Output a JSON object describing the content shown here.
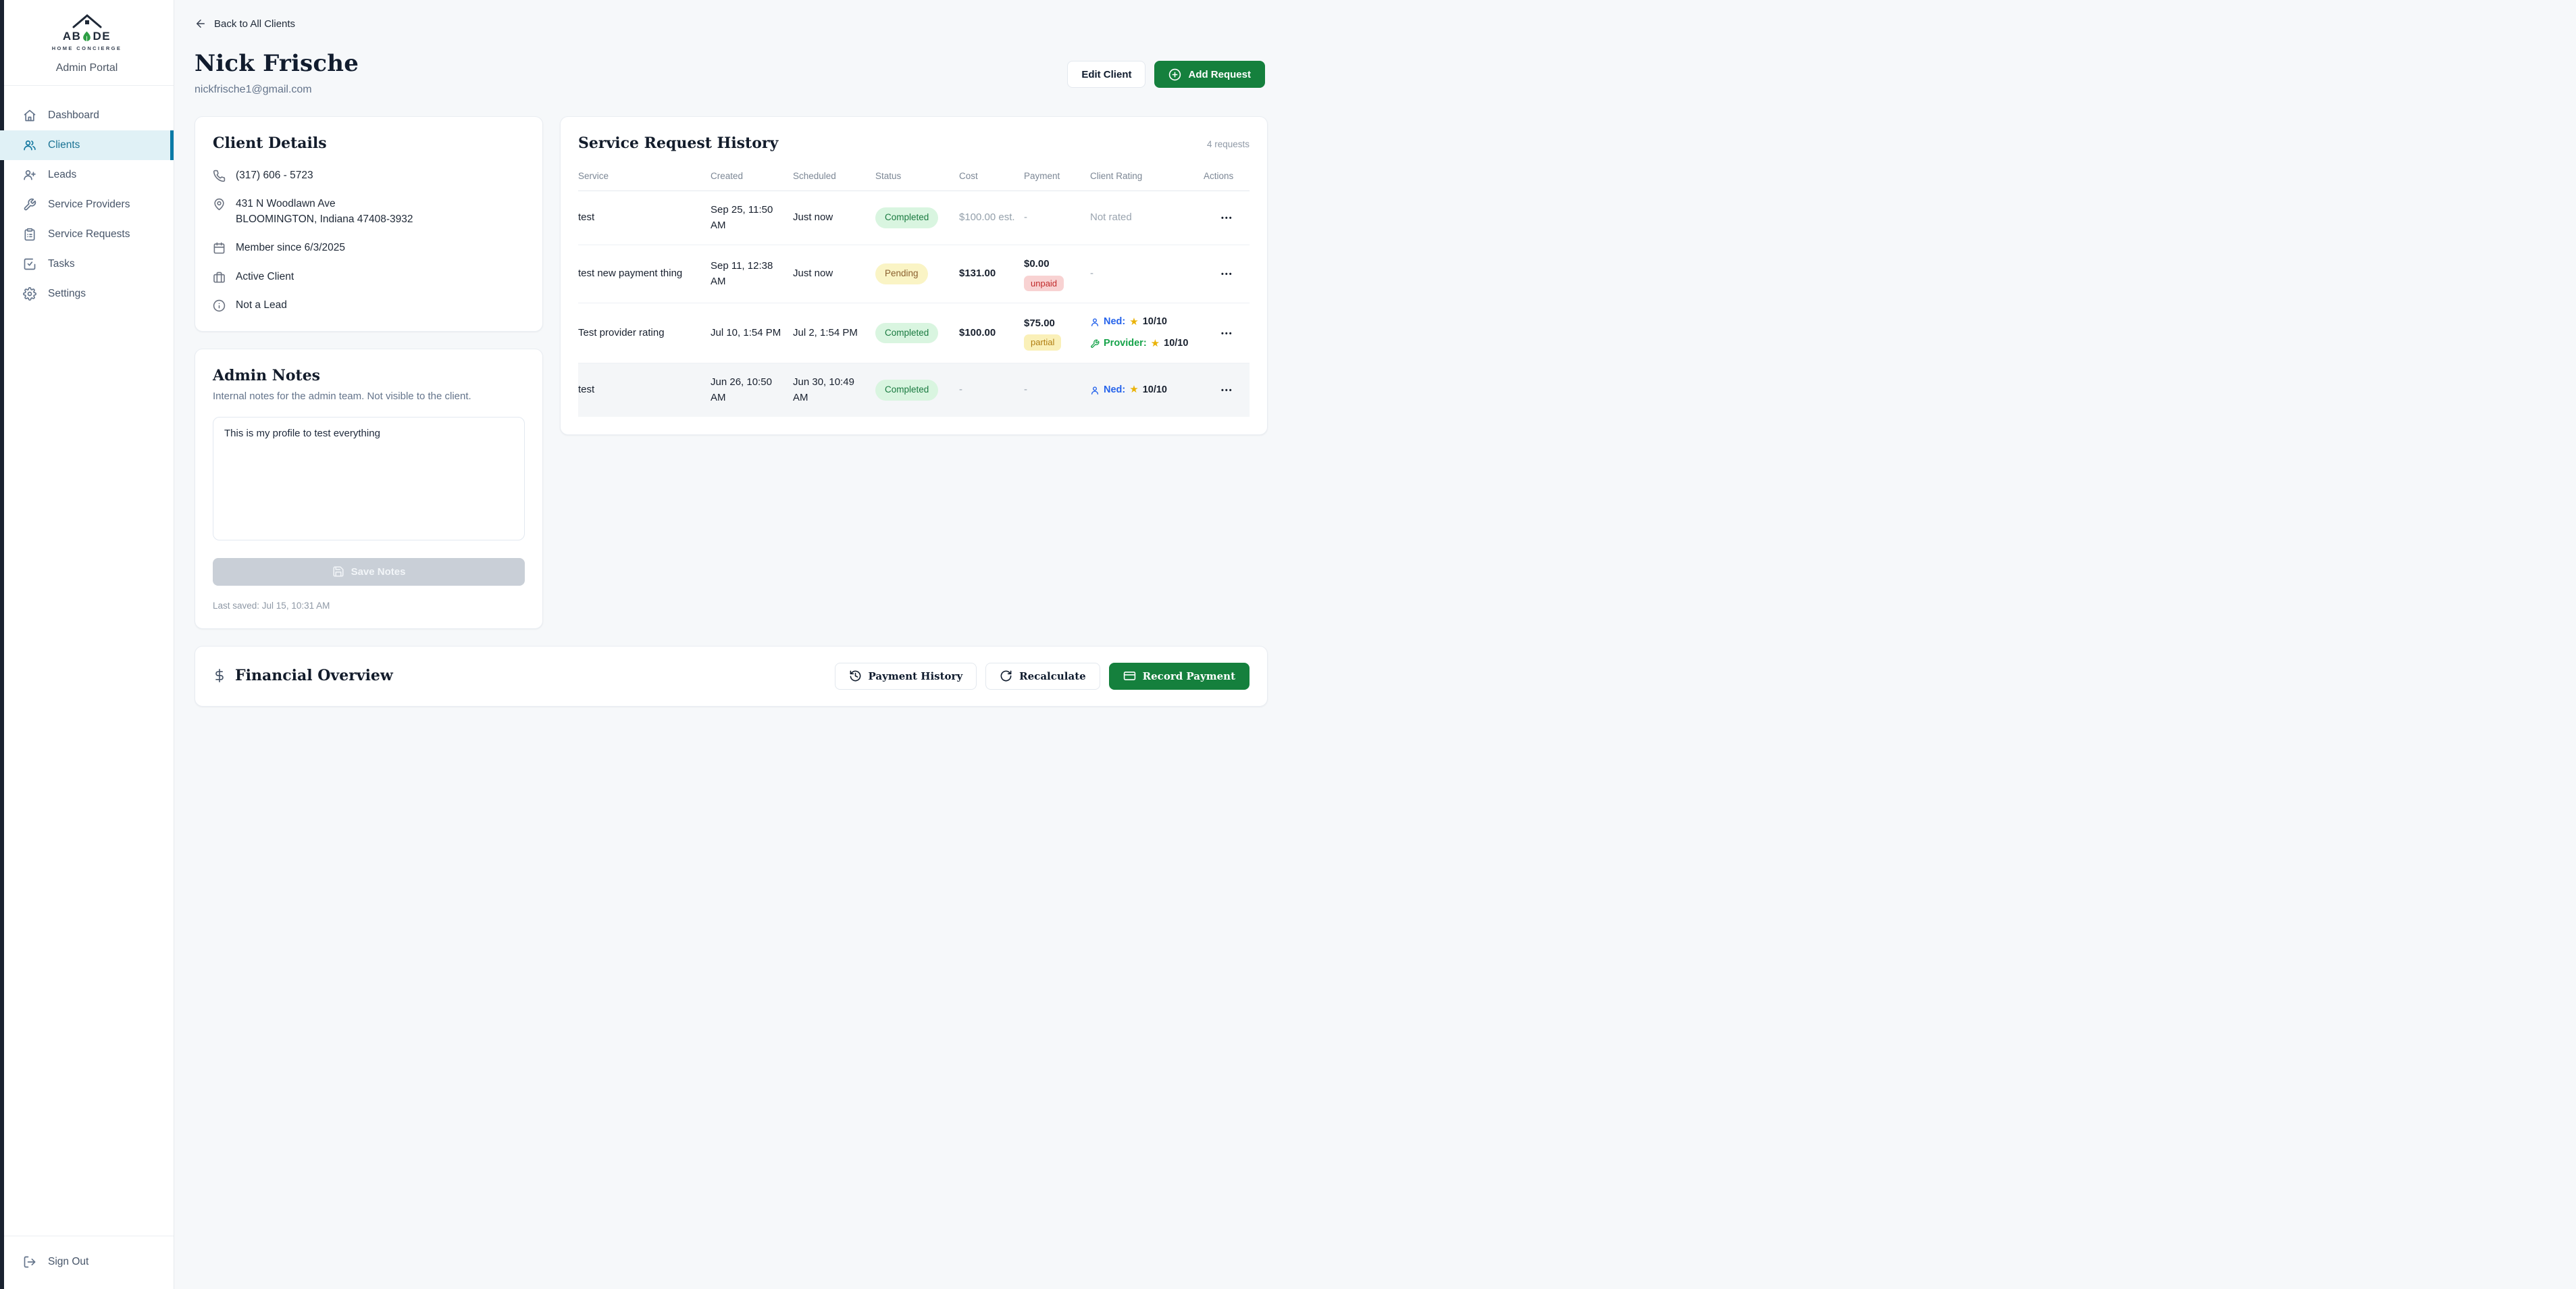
{
  "sidebar": {
    "brand_prefix": "AB",
    "brand_suffix": "DE",
    "tagline": "HOME CONCIERGE",
    "portal_label": "Admin Portal",
    "items": [
      {
        "label": "Dashboard",
        "active": false
      },
      {
        "label": "Clients",
        "active": true
      },
      {
        "label": "Leads",
        "active": false
      },
      {
        "label": "Service Providers",
        "active": false
      },
      {
        "label": "Service Requests",
        "active": false
      },
      {
        "label": "Tasks",
        "active": false
      },
      {
        "label": "Settings",
        "active": false
      }
    ],
    "sign_out_label": "Sign Out"
  },
  "header": {
    "back_link": "Back to All Clients",
    "client_name": "Nick Frische",
    "client_email": "nickfrische1@gmail.com",
    "edit_button": "Edit Client",
    "add_request_button": "Add Request"
  },
  "client_details": {
    "title": "Client Details",
    "phone": "(317) 606 - 5723",
    "address_line1": "431 N Woodlawn Ave",
    "address_line2": "BLOOMINGTON, Indiana 47408-3932",
    "member_since": "Member since 6/3/2025",
    "client_status": "Active Client",
    "lead_status": "Not a Lead"
  },
  "admin_notes": {
    "title": "Admin Notes",
    "subtitle": "Internal notes for the admin team. Not visible to the client.",
    "note_text": "This is my profile to test everything",
    "save_button": "Save Notes",
    "last_saved": "Last saved: Jul 15, 10:31 AM"
  },
  "service_history": {
    "title": "Service Request History",
    "count_label": "4 requests",
    "columns": [
      "Service",
      "Created",
      "Scheduled",
      "Status",
      "Cost",
      "Payment",
      "Client Rating",
      "Actions"
    ],
    "rows": [
      {
        "service": "test",
        "created": "Sep 25, 11:50 AM",
        "scheduled": "Just now",
        "status": "Completed",
        "cost": "$100.00 est.",
        "cost_muted": true,
        "payment": "-",
        "rating_text": "Not rated",
        "highlight": false
      },
      {
        "service": "test new payment thing",
        "created": "Sep 11, 12:38 AM",
        "scheduled": "Just now",
        "status": "Pending",
        "cost": "$131.00",
        "cost_muted": false,
        "payment": "$0.00",
        "payment_badge": "unpaid",
        "rating_text": "-",
        "highlight": false
      },
      {
        "service": "Test provider rating",
        "created": "Jul 10, 1:54 PM",
        "scheduled": "Jul 2, 1:54 PM",
        "status": "Completed",
        "cost": "$100.00",
        "cost_muted": false,
        "payment": "$75.00",
        "payment_badge": "partial",
        "ratings": [
          {
            "kind": "client",
            "name": "Ned:",
            "score": "10/10"
          },
          {
            "kind": "provider",
            "name": "Provider:",
            "score": "10/10"
          }
        ],
        "highlight": false
      },
      {
        "service": "test",
        "created": "Jun 26, 10:50 AM",
        "scheduled": "Jun 30, 10:49 AM",
        "status": "Completed",
        "cost": "-",
        "cost_muted": false,
        "payment": "-",
        "ratings": [
          {
            "kind": "client",
            "name": "Ned:",
            "score": "10/10"
          }
        ],
        "highlight": true
      }
    ],
    "actions_glyph": "•••"
  },
  "financial": {
    "title": "Financial Overview",
    "payment_history_button": "Payment History",
    "recalculate_button": "Recalculate",
    "record_payment_button": "Record Payment"
  },
  "colors": {
    "accent_green": "#15803d",
    "sidebar_active_teal": "#0a7aa6",
    "completed_badge_bg": "#d9f5e0",
    "completed_badge_text": "#1a7a40",
    "pending_badge_bg": "#faf4c5",
    "pending_badge_text": "#8a5f2e",
    "unpaid_badge_bg": "#f8d2d2",
    "unpaid_badge_text": "#c02b2b",
    "partial_badge_bg": "#faf0b8",
    "partial_badge_text": "#b07d10",
    "client_rating_blue": "#2563eb",
    "provider_rating_green": "#16a34a",
    "star_gold": "#eab308",
    "logo_leaf_green": "#2e9e44"
  }
}
